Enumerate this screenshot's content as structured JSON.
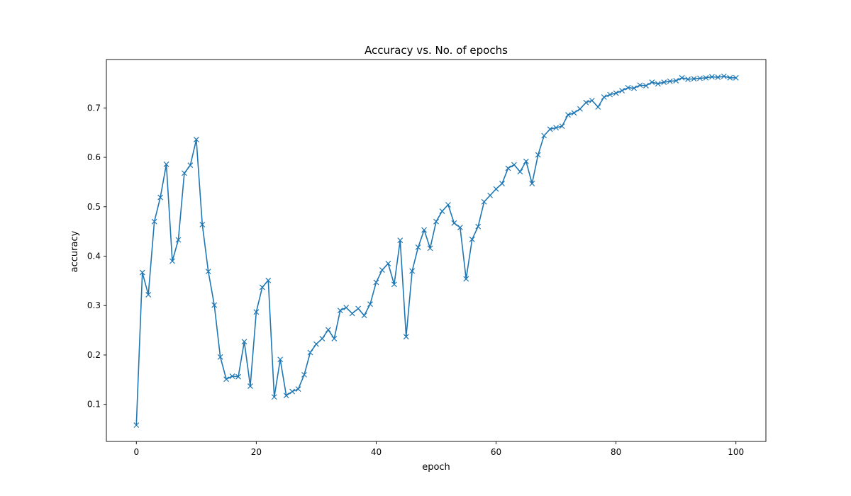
{
  "chart_data": {
    "type": "line",
    "title": "Accuracy vs. No. of epochs",
    "xlabel": "epoch",
    "ylabel": "accuracy",
    "xlim": [
      -5,
      105
    ],
    "ylim": [
      0.025,
      0.798
    ],
    "xticks": [
      0,
      20,
      40,
      60,
      80,
      100
    ],
    "yticks": [
      0.1,
      0.2,
      0.3,
      0.4,
      0.5,
      0.6,
      0.7
    ],
    "grid": false,
    "marker": "x",
    "series": [
      {
        "color": "#1f77b4",
        "x": [
          0,
          1,
          2,
          3,
          4,
          5,
          6,
          7,
          8,
          9,
          10,
          11,
          12,
          13,
          14,
          15,
          16,
          17,
          18,
          19,
          20,
          21,
          22,
          23,
          24,
          25,
          26,
          27,
          28,
          29,
          30,
          31,
          32,
          33,
          34,
          35,
          36,
          37,
          38,
          39,
          40,
          41,
          42,
          43,
          44,
          45,
          46,
          47,
          48,
          49,
          50,
          51,
          52,
          53,
          54,
          55,
          56,
          57,
          58,
          59,
          60,
          61,
          62,
          63,
          64,
          65,
          66,
          67,
          68,
          69,
          70,
          71,
          72,
          73,
          74,
          75,
          76,
          77,
          78,
          79,
          80,
          81,
          82,
          83,
          84,
          85,
          86,
          87,
          88,
          89,
          90,
          91,
          92,
          93,
          94,
          95,
          96,
          97,
          98,
          99,
          100
        ],
        "values": [
          0.058,
          0.367,
          0.322,
          0.47,
          0.519,
          0.586,
          0.39,
          0.433,
          0.568,
          0.584,
          0.636,
          0.464,
          0.369,
          0.301,
          0.196,
          0.151,
          0.157,
          0.156,
          0.227,
          0.137,
          0.287,
          0.337,
          0.351,
          0.115,
          0.191,
          0.118,
          0.126,
          0.131,
          0.16,
          0.205,
          0.222,
          0.233,
          0.251,
          0.233,
          0.29,
          0.296,
          0.284,
          0.294,
          0.28,
          0.303,
          0.347,
          0.372,
          0.385,
          0.343,
          0.432,
          0.237,
          0.37,
          0.418,
          0.453,
          0.416,
          0.47,
          0.491,
          0.504,
          0.467,
          0.458,
          0.354,
          0.434,
          0.46,
          0.51,
          0.523,
          0.536,
          0.547,
          0.578,
          0.585,
          0.571,
          0.592,
          0.547,
          0.605,
          0.644,
          0.657,
          0.66,
          0.663,
          0.686,
          0.69,
          0.698,
          0.711,
          0.715,
          0.702,
          0.722,
          0.727,
          0.73,
          0.735,
          0.741,
          0.74,
          0.746,
          0.745,
          0.752,
          0.749,
          0.752,
          0.754,
          0.755,
          0.761,
          0.758,
          0.759,
          0.76,
          0.761,
          0.763,
          0.762,
          0.764,
          0.761,
          0.761
        ]
      }
    ]
  }
}
